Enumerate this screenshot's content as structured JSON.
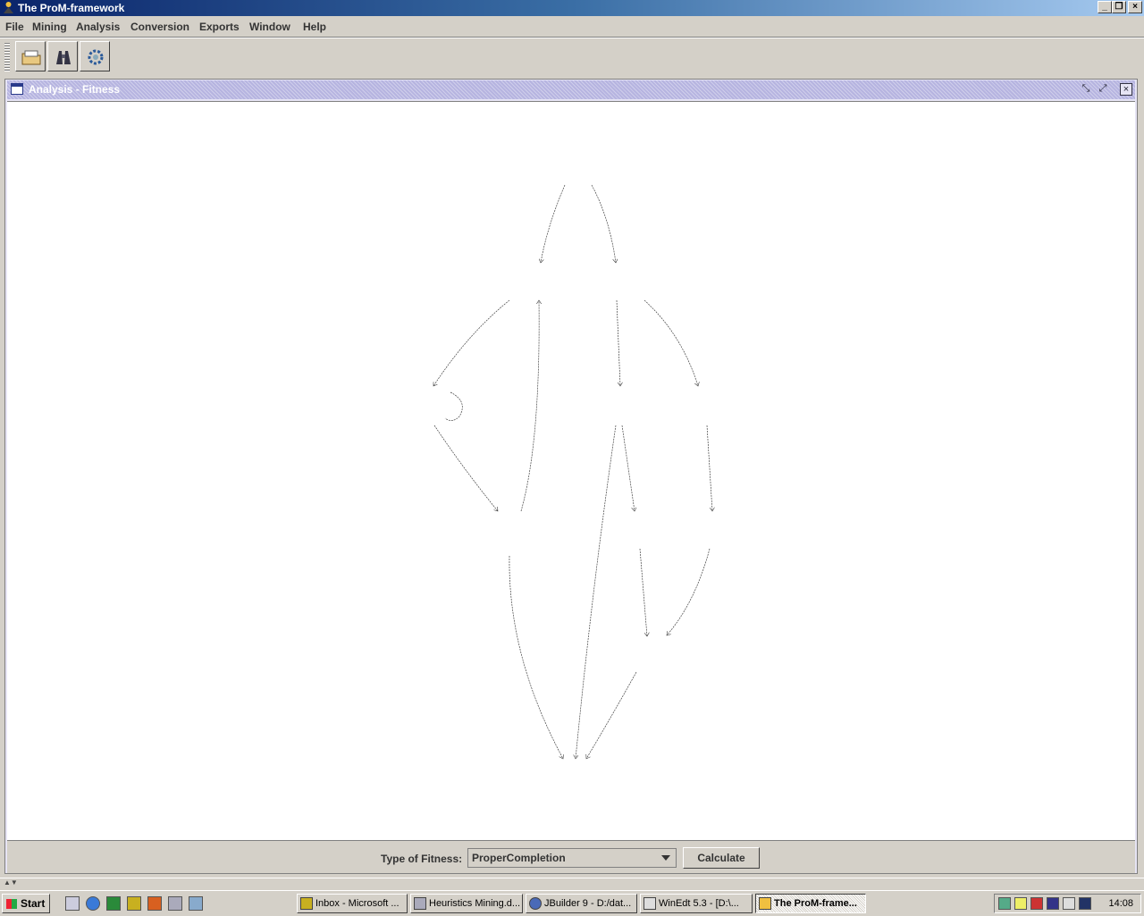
{
  "window": {
    "title": "The ProM-framework"
  },
  "menu": [
    "File",
    "Mining",
    "Analysis",
    "Conversion",
    "Exports",
    "Window",
    "Help"
  ],
  "toolbar": {
    "buttons": [
      {
        "name": "open-log-button",
        "icon": "folder-icon"
      },
      {
        "name": "mining-button",
        "icon": "binoculars-icon"
      },
      {
        "name": "conversion-button",
        "icon": "gears-icon"
      }
    ]
  },
  "internal_frame": {
    "title": "Analysis - Fitness"
  },
  "fitness": {
    "label": "Type of Fitness:",
    "selected": "ProperCompletion",
    "calculate_label": "Calculate"
  },
  "taskbar": {
    "start_label": "Start",
    "tasks": [
      {
        "label": "Inbox - Microsoft ...",
        "active": false
      },
      {
        "label": "Heuristics Mining.d...",
        "active": false
      },
      {
        "label": "JBuilder 9 - D:/dat...",
        "active": false
      },
      {
        "label": "WinEdt 5.3 - [D:\\...",
        "active": false
      },
      {
        "label": "The ProM-frame...",
        "active": true
      }
    ],
    "clock": "14:08"
  },
  "colors": {
    "titlebar_start": "#0a246a",
    "titlebar_end": "#a6caf0",
    "frame_title": "#b6b4e0",
    "face": "#d4d0c8"
  }
}
